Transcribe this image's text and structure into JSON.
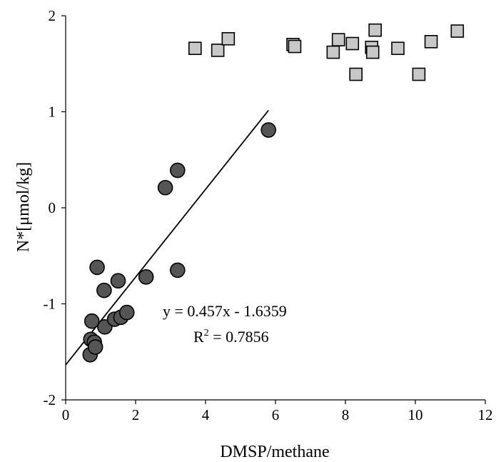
{
  "chart_data": {
    "type": "scatter",
    "title": "",
    "xlabel": "DMSP/methane",
    "ylabel": "N*[μmol/kg]",
    "xlim": [
      0,
      12
    ],
    "ylim": [
      -2,
      2
    ],
    "xticks": [
      "0",
      "2",
      "4",
      "6",
      "8",
      "10",
      "12"
    ],
    "yticks": [
      "-2",
      "-1",
      "0",
      "1",
      "2"
    ],
    "grid": false,
    "legend": "none",
    "series": [
      {
        "marker": "circle",
        "color": "#555555",
        "points": [
          [
            0.7,
            -1.53
          ],
          [
            0.72,
            -1.37
          ],
          [
            0.75,
            -1.18
          ],
          [
            0.82,
            -1.4
          ],
          [
            0.85,
            -1.45
          ],
          [
            0.9,
            -0.62
          ],
          [
            1.1,
            -0.86
          ],
          [
            1.12,
            -1.24
          ],
          [
            1.4,
            -1.16
          ],
          [
            1.5,
            -0.76
          ],
          [
            1.58,
            -1.14
          ],
          [
            1.75,
            -1.09
          ],
          [
            2.3,
            -0.72
          ],
          [
            2.85,
            0.21
          ],
          [
            3.2,
            0.39
          ],
          [
            3.2,
            -0.65
          ],
          [
            5.8,
            0.81
          ]
        ]
      },
      {
        "marker": "square",
        "color": "#c8c8c8",
        "points": [
          [
            3.7,
            1.66
          ],
          [
            4.35,
            1.64
          ],
          [
            4.65,
            1.76
          ],
          [
            6.5,
            1.7
          ],
          [
            6.55,
            1.68
          ],
          [
            7.65,
            1.62
          ],
          [
            7.8,
            1.75
          ],
          [
            8.2,
            1.71
          ],
          [
            8.3,
            1.39
          ],
          [
            8.75,
            1.67
          ],
          [
            8.78,
            1.62
          ],
          [
            8.85,
            1.85
          ],
          [
            9.5,
            1.66
          ],
          [
            10.1,
            1.39
          ],
          [
            10.45,
            1.73
          ],
          [
            11.2,
            1.84
          ]
        ]
      }
    ],
    "trendline": {
      "slope": 0.457,
      "intercept": -1.6359,
      "x_range": [
        0,
        5.8
      ]
    },
    "annotations": {
      "equation": "y = 0.457x - 1.6359",
      "r2_prefix": "R",
      "r2_sup": "2",
      "r2_value": " = 0.7856"
    },
    "colors": {
      "circle_fill": "#555555",
      "square_fill": "#c8c8c8",
      "stroke": "#000000"
    }
  }
}
